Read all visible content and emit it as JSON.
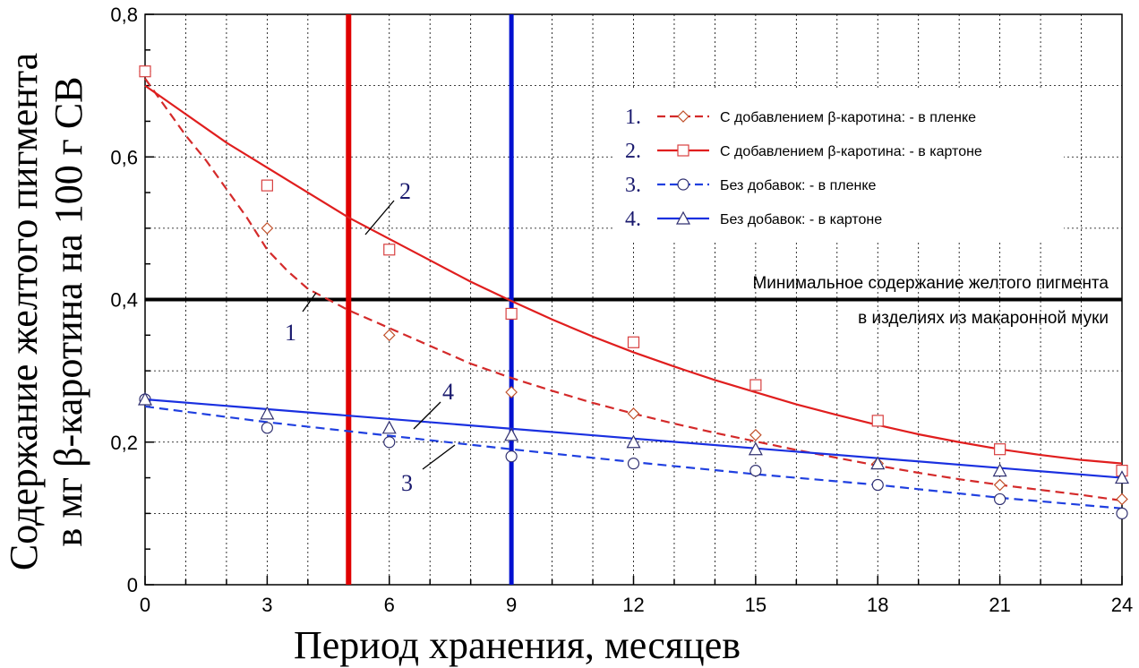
{
  "chart_data": {
    "type": "line",
    "xlabel": "Период хранения, месяцев",
    "ylabel_line1": "Содержание желтого пигмента",
    "ylabel_line2": "в мг  β-каротина на 100 г СВ",
    "xlim": [
      0,
      24
    ],
    "ylim": [
      0,
      0.8
    ],
    "xticks": [
      "0",
      "3",
      "6",
      "9",
      "12",
      "15",
      "18",
      "21",
      "24"
    ],
    "yticks": [
      "0",
      "0,2",
      "0,4",
      "0,6",
      "0,8"
    ],
    "grid": true,
    "legend_position": "top-right",
    "series": [
      {
        "num": "1.",
        "name": "С добавлением β-каротина: - в пленке",
        "color": "#d42a2a",
        "dash": "dashed",
        "marker": "diamond",
        "marker_color": "#c0502a",
        "callout": "1",
        "x": [
          0,
          3,
          6,
          9,
          12,
          15,
          18,
          21,
          24
        ],
        "y": [
          0.72,
          0.5,
          0.35,
          0.27,
          0.24,
          0.21,
          0.17,
          0.14,
          0.12
        ],
        "fit": [
          [
            0,
            0.71
          ],
          [
            0.5,
            0.67
          ],
          [
            1,
            0.63
          ],
          [
            1.5,
            0.595
          ],
          [
            2,
            0.555
          ],
          [
            2.5,
            0.515
          ],
          [
            3,
            0.47
          ],
          [
            3.5,
            0.44
          ],
          [
            4,
            0.415
          ],
          [
            5,
            0.385
          ],
          [
            6,
            0.36
          ],
          [
            7,
            0.335
          ],
          [
            8,
            0.31
          ],
          [
            9,
            0.29
          ],
          [
            10,
            0.272
          ],
          [
            11,
            0.255
          ],
          [
            12,
            0.24
          ],
          [
            13,
            0.226
          ],
          [
            14,
            0.213
          ],
          [
            15,
            0.201
          ],
          [
            16,
            0.189
          ],
          [
            17,
            0.178
          ],
          [
            18,
            0.167
          ],
          [
            19,
            0.157
          ],
          [
            20,
            0.148
          ],
          [
            21,
            0.14
          ],
          [
            22,
            0.133
          ],
          [
            23,
            0.126
          ],
          [
            24,
            0.118
          ]
        ]
      },
      {
        "num": "2.",
        "name": "С добавлением β-каротина: - в картоне",
        "color": "#e01e1e",
        "dash": "solid",
        "marker": "square",
        "marker_color": "#d84040",
        "callout": "2",
        "x": [
          0,
          3,
          6,
          9,
          12,
          15,
          18,
          21,
          24
        ],
        "y": [
          0.72,
          0.56,
          0.47,
          0.38,
          0.34,
          0.28,
          0.23,
          0.19,
          0.16
        ],
        "fit": [
          [
            0,
            0.7
          ],
          [
            1,
            0.66
          ],
          [
            2,
            0.62
          ],
          [
            3,
            0.585
          ],
          [
            4,
            0.55
          ],
          [
            5,
            0.515
          ],
          [
            6,
            0.485
          ],
          [
            7,
            0.455
          ],
          [
            8,
            0.425
          ],
          [
            9,
            0.398
          ],
          [
            10,
            0.372
          ],
          [
            11,
            0.348
          ],
          [
            12,
            0.326
          ],
          [
            13,
            0.306
          ],
          [
            14,
            0.287
          ],
          [
            15,
            0.27
          ],
          [
            16,
            0.253
          ],
          [
            17,
            0.238
          ],
          [
            18,
            0.224
          ],
          [
            19,
            0.211
          ],
          [
            20,
            0.2
          ],
          [
            21,
            0.19
          ],
          [
            22,
            0.182
          ],
          [
            23,
            0.175
          ],
          [
            24,
            0.17
          ]
        ]
      },
      {
        "num": "3.",
        "name": "Без добавок: - в пленке",
        "color": "#2040e0",
        "dash": "dashed",
        "marker": "circle",
        "marker_color": "#303070",
        "callout": "3",
        "x": [
          0,
          3,
          6,
          9,
          12,
          15,
          18,
          21,
          24
        ],
        "y": [
          0.26,
          0.22,
          0.2,
          0.18,
          0.17,
          0.16,
          0.14,
          0.12,
          0.1
        ],
        "fit": [
          [
            0,
            0.25
          ],
          [
            3,
            0.228
          ],
          [
            6,
            0.209
          ],
          [
            9,
            0.19
          ],
          [
            12,
            0.172
          ],
          [
            15,
            0.155
          ],
          [
            18,
            0.14
          ],
          [
            21,
            0.122
          ],
          [
            24,
            0.107
          ]
        ]
      },
      {
        "num": "4.",
        "name": "Без добавок: - в картоне",
        "color": "#1a30e0",
        "dash": "solid",
        "marker": "triangle",
        "marker_color": "#303070",
        "callout": "4",
        "x": [
          0,
          3,
          6,
          9,
          12,
          15,
          18,
          21,
          24
        ],
        "y": [
          0.26,
          0.24,
          0.22,
          0.21,
          0.2,
          0.19,
          0.17,
          0.16,
          0.15
        ],
        "fit": [
          [
            0,
            0.26
          ],
          [
            24,
            0.15
          ]
        ]
      }
    ],
    "reference_lines": {
      "horizontal": {
        "y": 0.4,
        "color": "#000000"
      },
      "vertical_red": {
        "x": 5,
        "color": "#e00000"
      },
      "vertical_blue": {
        "x": 9,
        "color": "#0010d0"
      }
    },
    "annotation_line1": "Минимальное содержание желтого пигмента",
    "annotation_line2": "в изделиях из макаронной муки"
  }
}
